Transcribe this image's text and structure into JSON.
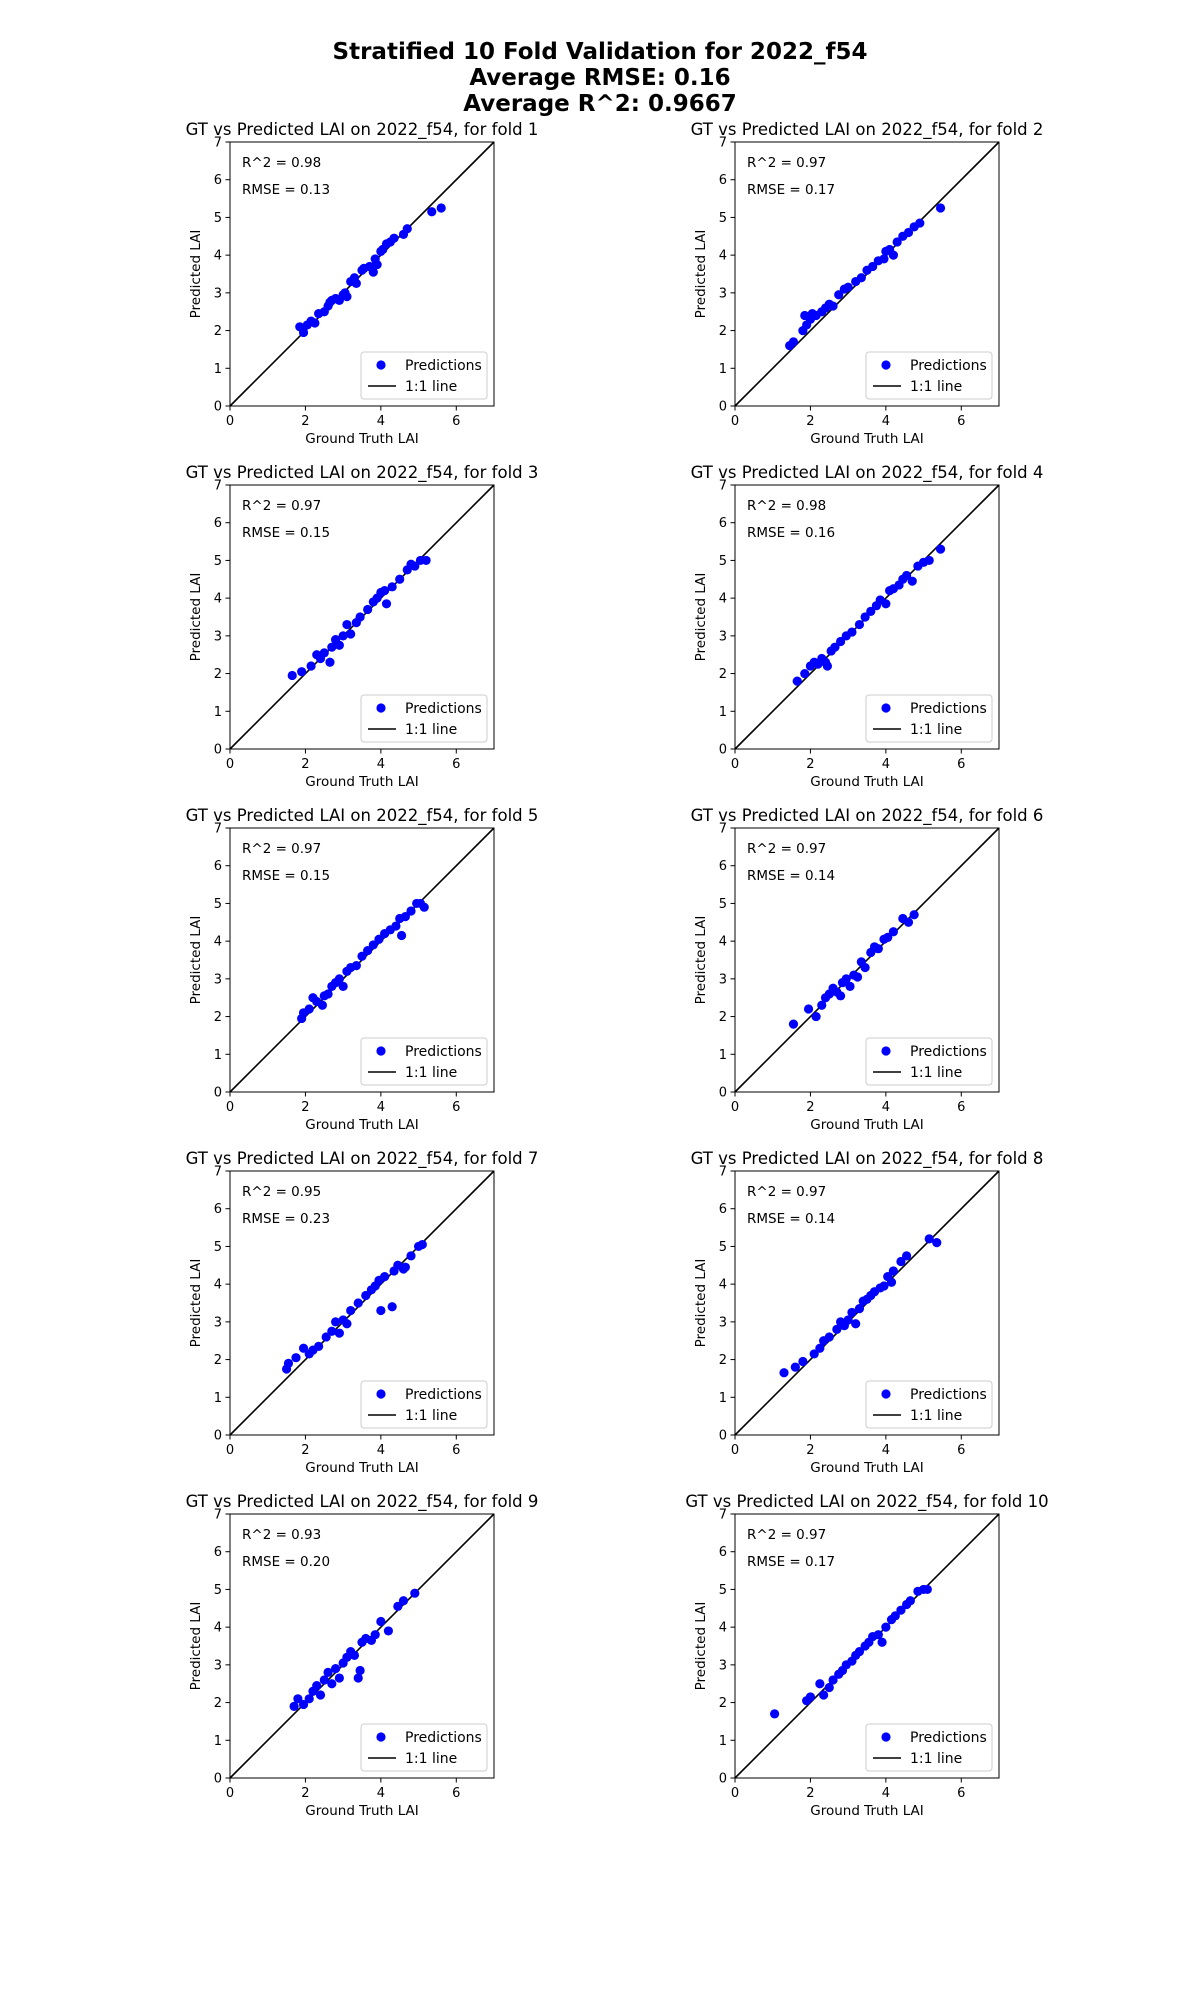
{
  "figure": {
    "title_lines": [
      "Stratified 10 Fold Validation for 2022_f54",
      "Average RMSE: 0.16",
      "Average R^2: 0.9667"
    ]
  },
  "chart_data": [
    {
      "type": "scatter",
      "title": "GT vs Predicted LAI on 2022_f54, for fold 1",
      "xlabel": "Ground Truth LAI",
      "ylabel": "Predicted LAI",
      "xlim": [
        0,
        7
      ],
      "ylim": [
        0,
        7
      ],
      "xticks": [
        "0",
        "2",
        "4",
        "6"
      ],
      "yticks": [
        "0",
        "1",
        "2",
        "3",
        "4",
        "5",
        "6",
        "7"
      ],
      "annotations": [
        "R^2 = 0.98",
        "RMSE = 0.13"
      ],
      "legend": {
        "placement": "lower-right",
        "entries": [
          "Predictions",
          "1:1 line"
        ]
      },
      "colors": {
        "points": "#0000ff",
        "line": "#000000"
      },
      "reference_line": [
        [
          0,
          0
        ],
        [
          7,
          7
        ]
      ],
      "x": [
        1.85,
        1.95,
        2.05,
        2.15,
        2.25,
        2.35,
        2.5,
        2.6,
        2.65,
        2.7,
        2.8,
        2.9,
        3.0,
        3.05,
        3.1,
        3.2,
        3.3,
        3.35,
        3.5,
        3.55,
        3.7,
        3.8,
        3.85,
        3.9,
        4.0,
        4.05,
        4.15,
        4.25,
        4.35,
        4.6,
        4.7,
        5.35,
        5.6
      ],
      "y": [
        2.1,
        1.95,
        2.15,
        2.25,
        2.2,
        2.45,
        2.5,
        2.65,
        2.75,
        2.8,
        2.85,
        2.8,
        2.95,
        3.0,
        2.9,
        3.3,
        3.4,
        3.25,
        3.6,
        3.65,
        3.7,
        3.55,
        3.9,
        3.75,
        4.1,
        4.15,
        4.3,
        4.35,
        4.45,
        4.55,
        4.7,
        5.15,
        5.25
      ]
    },
    {
      "type": "scatter",
      "title": "GT vs Predicted LAI on 2022_f54, for fold 2",
      "xlabel": "Ground Truth LAI",
      "ylabel": "Predicted LAI",
      "xlim": [
        0,
        7
      ],
      "ylim": [
        0,
        7
      ],
      "xticks": [
        "0",
        "2",
        "4",
        "6"
      ],
      "yticks": [
        "0",
        "1",
        "2",
        "3",
        "4",
        "5",
        "6",
        "7"
      ],
      "annotations": [
        "R^2 = 0.97",
        "RMSE = 0.17"
      ],
      "legend": {
        "placement": "lower-right",
        "entries": [
          "Predictions",
          "1:1 line"
        ]
      },
      "colors": {
        "points": "#0000ff",
        "line": "#000000"
      },
      "reference_line": [
        [
          0,
          0
        ],
        [
          7,
          7
        ]
      ],
      "x": [
        1.45,
        1.55,
        1.8,
        1.85,
        1.9,
        2.0,
        2.05,
        2.15,
        2.3,
        2.4,
        2.5,
        2.6,
        2.75,
        2.9,
        3.0,
        3.2,
        3.35,
        3.5,
        3.65,
        3.8,
        3.95,
        4.0,
        4.1,
        4.2,
        4.3,
        4.45,
        4.6,
        4.75,
        4.9,
        5.45
      ],
      "y": [
        1.6,
        1.7,
        2.0,
        2.4,
        2.15,
        2.3,
        2.45,
        2.4,
        2.5,
        2.6,
        2.7,
        2.65,
        2.95,
        3.1,
        3.15,
        3.3,
        3.4,
        3.6,
        3.7,
        3.85,
        3.9,
        4.1,
        4.15,
        4.0,
        4.35,
        4.5,
        4.6,
        4.75,
        4.85,
        5.25
      ]
    },
    {
      "type": "scatter",
      "title": "GT vs Predicted LAI on 2022_f54, for fold 3",
      "xlabel": "Ground Truth LAI",
      "ylabel": "Predicted LAI",
      "xlim": [
        0,
        7
      ],
      "ylim": [
        0,
        7
      ],
      "xticks": [
        "0",
        "2",
        "4",
        "6"
      ],
      "yticks": [
        "0",
        "1",
        "2",
        "3",
        "4",
        "5",
        "6",
        "7"
      ],
      "annotations": [
        "R^2 = 0.97",
        "RMSE = 0.15"
      ],
      "legend": {
        "placement": "lower-right",
        "entries": [
          "Predictions",
          "1:1 line"
        ]
      },
      "colors": {
        "points": "#0000ff",
        "line": "#000000"
      },
      "reference_line": [
        [
          0,
          0
        ],
        [
          7,
          7
        ]
      ],
      "x": [
        1.65,
        1.9,
        2.15,
        2.3,
        2.4,
        2.5,
        2.65,
        2.7,
        2.8,
        2.9,
        3.0,
        3.1,
        3.2,
        3.35,
        3.45,
        3.65,
        3.8,
        3.9,
        4.0,
        4.1,
        4.15,
        4.3,
        4.5,
        4.7,
        4.8,
        4.9,
        5.05,
        5.2
      ],
      "y": [
        1.95,
        2.05,
        2.2,
        2.5,
        2.4,
        2.55,
        2.3,
        2.7,
        2.9,
        2.75,
        3.0,
        3.3,
        3.05,
        3.35,
        3.5,
        3.7,
        3.9,
        4.0,
        4.15,
        4.2,
        3.85,
        4.3,
        4.5,
        4.75,
        4.9,
        4.85,
        5.0,
        5.0
      ]
    },
    {
      "type": "scatter",
      "title": "GT vs Predicted LAI on 2022_f54, for fold 4",
      "xlabel": "Ground Truth LAI",
      "ylabel": "Predicted LAI",
      "xlim": [
        0,
        7
      ],
      "ylim": [
        0,
        7
      ],
      "xticks": [
        "0",
        "2",
        "4",
        "6"
      ],
      "yticks": [
        "0",
        "1",
        "2",
        "3",
        "4",
        "5",
        "6",
        "7"
      ],
      "annotations": [
        "R^2 = 0.98",
        "RMSE = 0.16"
      ],
      "legend": {
        "placement": "lower-right",
        "entries": [
          "Predictions",
          "1:1 line"
        ]
      },
      "colors": {
        "points": "#0000ff",
        "line": "#000000"
      },
      "reference_line": [
        [
          0,
          0
        ],
        [
          7,
          7
        ]
      ],
      "x": [
        1.65,
        1.85,
        2.0,
        2.1,
        2.2,
        2.3,
        2.4,
        2.45,
        2.55,
        2.65,
        2.8,
        2.95,
        3.1,
        3.3,
        3.45,
        3.6,
        3.75,
        3.85,
        4.0,
        4.1,
        4.2,
        4.35,
        4.45,
        4.55,
        4.7,
        4.85,
        5.0,
        5.15,
        5.45
      ],
      "y": [
        1.8,
        2.0,
        2.2,
        2.3,
        2.25,
        2.4,
        2.3,
        2.2,
        2.6,
        2.7,
        2.85,
        3.0,
        3.1,
        3.3,
        3.5,
        3.65,
        3.8,
        3.95,
        3.85,
        4.2,
        4.25,
        4.35,
        4.5,
        4.6,
        4.45,
        4.85,
        4.95,
        5.0,
        5.3
      ]
    },
    {
      "type": "scatter",
      "title": "GT vs Predicted LAI on 2022_f54, for fold 5",
      "xlabel": "Ground Truth LAI",
      "ylabel": "Predicted LAI",
      "xlim": [
        0,
        7
      ],
      "ylim": [
        0,
        7
      ],
      "xticks": [
        "0",
        "2",
        "4",
        "6"
      ],
      "yticks": [
        "0",
        "1",
        "2",
        "3",
        "4",
        "5",
        "6",
        "7"
      ],
      "annotations": [
        "R^2 = 0.97",
        "RMSE = 0.15"
      ],
      "legend": {
        "placement": "lower-right",
        "entries": [
          "Predictions",
          "1:1 line"
        ]
      },
      "colors": {
        "points": "#0000ff",
        "line": "#000000"
      },
      "reference_line": [
        [
          0,
          0
        ],
        [
          7,
          7
        ]
      ],
      "x": [
        1.9,
        1.95,
        2.1,
        2.2,
        2.3,
        2.45,
        2.5,
        2.6,
        2.7,
        2.8,
        2.9,
        3.0,
        3.1,
        3.2,
        3.35,
        3.5,
        3.65,
        3.8,
        3.95,
        4.1,
        4.25,
        4.4,
        4.5,
        4.55,
        4.65,
        4.8,
        4.95,
        5.05,
        5.15
      ],
      "y": [
        1.95,
        2.1,
        2.2,
        2.5,
        2.4,
        2.3,
        2.55,
        2.6,
        2.8,
        2.9,
        3.0,
        2.8,
        3.2,
        3.3,
        3.35,
        3.6,
        3.75,
        3.9,
        4.05,
        4.2,
        4.3,
        4.4,
        4.6,
        4.15,
        4.65,
        4.8,
        5.0,
        5.0,
        4.9
      ]
    },
    {
      "type": "scatter",
      "title": "GT vs Predicted LAI on 2022_f54, for fold 6",
      "xlabel": "Ground Truth LAI",
      "ylabel": "Predicted LAI",
      "xlim": [
        0,
        7
      ],
      "ylim": [
        0,
        7
      ],
      "xticks": [
        "0",
        "2",
        "4",
        "6"
      ],
      "yticks": [
        "0",
        "1",
        "2",
        "3",
        "4",
        "5",
        "6",
        "7"
      ],
      "annotations": [
        "R^2 = 0.97",
        "RMSE = 0.14"
      ],
      "legend": {
        "placement": "lower-right",
        "entries": [
          "Predictions",
          "1:1 line"
        ]
      },
      "colors": {
        "points": "#0000ff",
        "line": "#000000"
      },
      "reference_line": [
        [
          0,
          0
        ],
        [
          7,
          7
        ]
      ],
      "x": [
        1.55,
        1.95,
        2.15,
        2.3,
        2.4,
        2.5,
        2.6,
        2.7,
        2.8,
        2.85,
        2.95,
        3.05,
        3.15,
        3.25,
        3.35,
        3.45,
        3.6,
        3.7,
        3.8,
        3.95,
        4.05,
        4.2,
        4.45,
        4.6,
        4.75
      ],
      "y": [
        1.8,
        2.2,
        2.0,
        2.3,
        2.5,
        2.6,
        2.75,
        2.65,
        2.55,
        2.9,
        3.0,
        2.8,
        3.1,
        3.05,
        3.45,
        3.3,
        3.7,
        3.85,
        3.8,
        4.05,
        4.1,
        4.25,
        4.6,
        4.5,
        4.7
      ]
    },
    {
      "type": "scatter",
      "title": "GT vs Predicted LAI on 2022_f54, for fold 7",
      "xlabel": "Ground Truth LAI",
      "ylabel": "Predicted LAI",
      "xlim": [
        0,
        7
      ],
      "ylim": [
        0,
        7
      ],
      "xticks": [
        "0",
        "2",
        "4",
        "6"
      ],
      "yticks": [
        "0",
        "1",
        "2",
        "3",
        "4",
        "5",
        "6",
        "7"
      ],
      "annotations": [
        "R^2 = 0.95",
        "RMSE = 0.23"
      ],
      "legend": {
        "placement": "lower-right",
        "entries": [
          "Predictions",
          "1:1 line"
        ]
      },
      "colors": {
        "points": "#0000ff",
        "line": "#000000"
      },
      "reference_line": [
        [
          0,
          0
        ],
        [
          7,
          7
        ]
      ],
      "x": [
        1.5,
        1.55,
        1.75,
        1.95,
        2.1,
        2.2,
        2.35,
        2.55,
        2.7,
        2.8,
        2.9,
        3.0,
        3.1,
        3.2,
        3.4,
        3.6,
        3.75,
        3.85,
        3.95,
        4.0,
        4.1,
        4.3,
        4.35,
        4.45,
        4.6,
        4.65,
        4.8,
        5.0,
        5.1
      ],
      "y": [
        1.75,
        1.9,
        2.05,
        2.3,
        2.15,
        2.25,
        2.35,
        2.6,
        2.75,
        3.0,
        2.7,
        3.05,
        2.95,
        3.3,
        3.5,
        3.7,
        3.85,
        3.95,
        4.1,
        3.3,
        4.2,
        3.4,
        4.35,
        4.5,
        4.4,
        4.45,
        4.75,
        5.0,
        5.05
      ]
    },
    {
      "type": "scatter",
      "title": "GT vs Predicted LAI on 2022_f54, for fold 8",
      "xlabel": "Ground Truth LAI",
      "ylabel": "Predicted LAI",
      "xlim": [
        0,
        7
      ],
      "ylim": [
        0,
        7
      ],
      "xticks": [
        "0",
        "2",
        "4",
        "6"
      ],
      "yticks": [
        "0",
        "1",
        "2",
        "3",
        "4",
        "5",
        "6",
        "7"
      ],
      "annotations": [
        "R^2 = 0.97",
        "RMSE = 0.14"
      ],
      "legend": {
        "placement": "lower-right",
        "entries": [
          "Predictions",
          "1:1 line"
        ]
      },
      "colors": {
        "points": "#0000ff",
        "line": "#000000"
      },
      "reference_line": [
        [
          0,
          0
        ],
        [
          7,
          7
        ]
      ],
      "x": [
        1.3,
        1.6,
        1.8,
        2.1,
        2.25,
        2.35,
        2.5,
        2.7,
        2.8,
        2.9,
        3.0,
        3.1,
        3.2,
        3.3,
        3.4,
        3.5,
        3.6,
        3.7,
        3.85,
        3.95,
        4.05,
        4.15,
        4.2,
        4.4,
        4.55,
        5.15,
        5.35
      ],
      "y": [
        1.65,
        1.8,
        1.95,
        2.15,
        2.3,
        2.5,
        2.6,
        2.8,
        3.0,
        2.9,
        3.05,
        3.25,
        2.95,
        3.35,
        3.55,
        3.6,
        3.7,
        3.8,
        3.9,
        3.95,
        4.2,
        4.05,
        4.35,
        4.6,
        4.75,
        5.2,
        5.1
      ]
    },
    {
      "type": "scatter",
      "title": "GT vs Predicted LAI on 2022_f54, for fold 9",
      "xlabel": "Ground Truth LAI",
      "ylabel": "Predicted LAI",
      "xlim": [
        0,
        7
      ],
      "ylim": [
        0,
        7
      ],
      "xticks": [
        "0",
        "2",
        "4",
        "6"
      ],
      "yticks": [
        "0",
        "1",
        "2",
        "3",
        "4",
        "5",
        "6",
        "7"
      ],
      "annotations": [
        "R^2 = 0.93",
        "RMSE = 0.20"
      ],
      "legend": {
        "placement": "lower-right",
        "entries": [
          "Predictions",
          "1:1 line"
        ]
      },
      "colors": {
        "points": "#0000ff",
        "line": "#000000"
      },
      "reference_line": [
        [
          0,
          0
        ],
        [
          7,
          7
        ]
      ],
      "x": [
        1.7,
        1.8,
        1.95,
        2.1,
        2.2,
        2.3,
        2.4,
        2.5,
        2.6,
        2.7,
        2.8,
        2.9,
        3.0,
        3.1,
        3.2,
        3.3,
        3.4,
        3.45,
        3.5,
        3.6,
        3.75,
        3.85,
        4.0,
        4.2,
        4.45,
        4.6,
        4.9
      ],
      "y": [
        1.9,
        2.1,
        1.95,
        2.1,
        2.3,
        2.45,
        2.2,
        2.6,
        2.8,
        2.5,
        2.9,
        2.65,
        3.05,
        3.2,
        3.35,
        3.25,
        2.65,
        2.85,
        3.6,
        3.7,
        3.65,
        3.8,
        4.15,
        3.9,
        4.55,
        4.7,
        4.9
      ]
    },
    {
      "type": "scatter",
      "title": "GT vs Predicted LAI on 2022_f54, for fold 10",
      "xlabel": "Ground Truth LAI",
      "ylabel": "Predicted LAI",
      "xlim": [
        0,
        7
      ],
      "ylim": [
        0,
        7
      ],
      "xticks": [
        "0",
        "2",
        "4",
        "6"
      ],
      "yticks": [
        "0",
        "1",
        "2",
        "3",
        "4",
        "5",
        "6",
        "7"
      ],
      "annotations": [
        "R^2 = 0.97",
        "RMSE = 0.17"
      ],
      "legend": {
        "placement": "lower-right",
        "entries": [
          "Predictions",
          "1:1 line"
        ]
      },
      "colors": {
        "points": "#0000ff",
        "line": "#000000"
      },
      "reference_line": [
        [
          0,
          0
        ],
        [
          7,
          7
        ]
      ],
      "x": [
        1.05,
        1.9,
        2.0,
        2.25,
        2.35,
        2.5,
        2.6,
        2.75,
        2.85,
        2.95,
        3.1,
        3.2,
        3.3,
        3.45,
        3.55,
        3.65,
        3.8,
        3.9,
        4.0,
        4.15,
        4.25,
        4.4,
        4.55,
        4.65,
        4.85,
        5.0,
        5.1
      ],
      "y": [
        1.7,
        2.05,
        2.15,
        2.5,
        2.2,
        2.4,
        2.6,
        2.75,
        2.85,
        3.0,
        3.1,
        3.25,
        3.35,
        3.5,
        3.6,
        3.75,
        3.8,
        3.6,
        4.0,
        4.2,
        4.3,
        4.45,
        4.6,
        4.7,
        4.95,
        5.0,
        5.0
      ]
    }
  ]
}
